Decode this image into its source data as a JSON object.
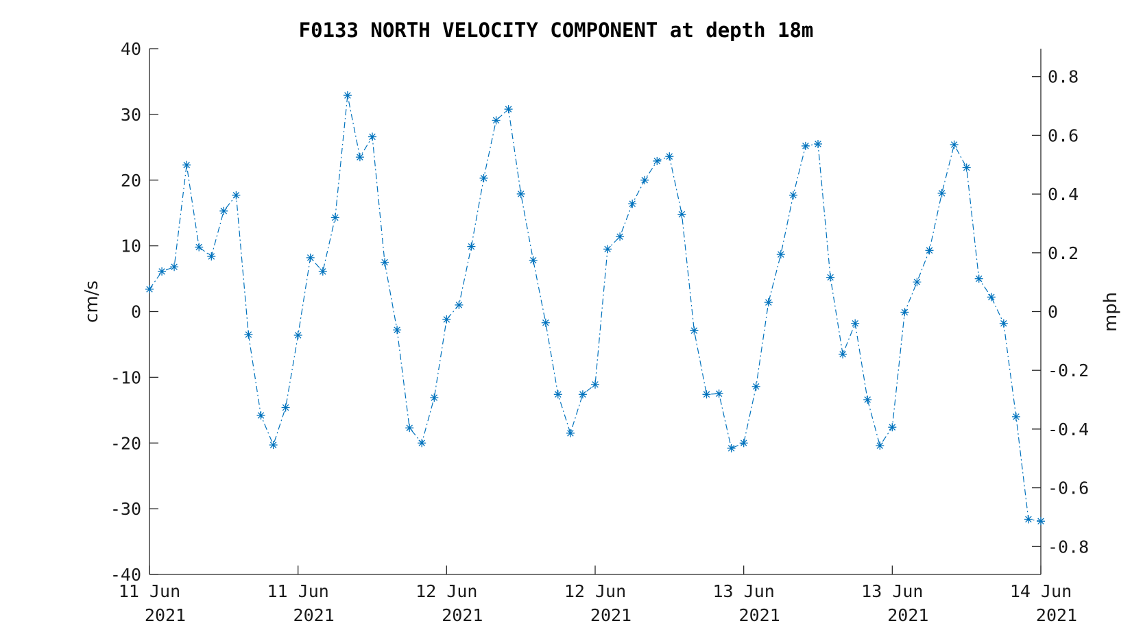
{
  "chart_data": {
    "type": "line",
    "title": "F0133 NORTH VELOCITY COMPONENT at depth 18m",
    "ylabel": "cm/s",
    "y2label": "mph",
    "ylim": [
      -40,
      40
    ],
    "y2lim": [
      -0.895,
      0.895
    ],
    "yticks": [
      "40",
      "30",
      "20",
      "10",
      "0",
      "-10",
      "-20",
      "-30",
      "-40"
    ],
    "y2ticks": [
      "0.8",
      "0.6",
      "0.4",
      "0.2",
      "0",
      "-0.2",
      "-0.4",
      "-0.6",
      "-0.8"
    ],
    "xticks": [
      {
        "day": "11 Jun",
        "year": "2021"
      },
      {
        "day": "11 Jun",
        "year": "2021"
      },
      {
        "day": "12 Jun",
        "year": "2021"
      },
      {
        "day": "12 Jun",
        "year": "2021"
      },
      {
        "day": "13 Jun",
        "year": "2021"
      },
      {
        "day": "13 Jun",
        "year": "2021"
      },
      {
        "day": "14 Jun",
        "year": "2021"
      }
    ],
    "x_range_hours": [
      0,
      72
    ],
    "line_style": "dash-dot",
    "marker": "asterisk",
    "grid": false,
    "series": [
      {
        "color": "#0072BD",
        "x_hours": [
          0,
          1,
          2,
          3,
          4,
          5,
          6,
          7,
          8,
          9,
          10,
          11,
          12,
          13,
          14,
          15,
          16,
          17,
          18,
          19,
          20,
          21,
          22,
          23,
          24,
          25,
          26,
          27,
          28,
          29,
          30,
          31,
          32,
          33,
          34,
          35,
          36,
          37,
          38,
          39,
          40,
          41,
          42,
          43,
          44,
          45,
          46,
          47,
          48,
          49,
          50,
          51,
          52,
          53,
          54,
          55,
          56,
          57,
          58,
          59,
          60,
          61,
          62,
          63,
          64,
          65,
          66,
          67,
          68,
          69,
          70,
          71,
          72
        ],
        "values": [
          3.4,
          6.1,
          6.8,
          22.3,
          9.8,
          8.4,
          15.3,
          17.7,
          -3.5,
          -15.8,
          -20.3,
          -14.6,
          -3.6,
          8.2,
          6.1,
          14.3,
          32.9,
          23.5,
          26.6,
          7.5,
          -2.8,
          -17.7,
          -20.0,
          -13.1,
          -1.2,
          1.0,
          9.9,
          20.3,
          29.1,
          30.8,
          17.9,
          7.8,
          -1.7,
          -12.6,
          -18.5,
          -12.6,
          -11.1,
          9.5,
          11.4,
          16.4,
          20.0,
          22.9,
          23.6,
          14.8,
          -2.9,
          -12.6,
          -12.5,
          -20.8,
          -20.0,
          -11.4,
          1.4,
          8.7,
          17.7,
          25.2,
          25.5,
          5.2,
          -6.5,
          -1.8,
          -13.4,
          -20.4,
          -17.6,
          -0.1,
          4.5,
          9.3,
          18.0,
          25.4,
          21.9,
          5.0,
          2.2,
          -1.8,
          -16.0,
          -31.6,
          -31.9
        ]
      }
    ]
  }
}
